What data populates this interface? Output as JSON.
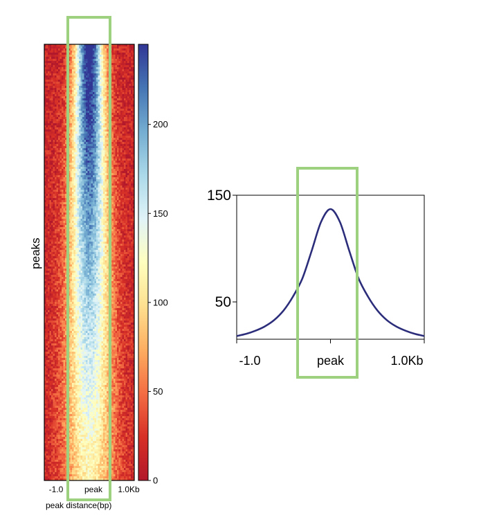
{
  "chart_data": [
    {
      "type": "heatmap",
      "ylabel": "peaks",
      "xlabel": "peak distance(bp)",
      "x_tick_labels": [
        "-1.0",
        "peak",
        "1.0Kb"
      ],
      "x_range_kb": [
        -1.0,
        1.0
      ],
      "rows_sorted": "descending signal at peak",
      "colorbar": {
        "range": [
          0,
          245
        ],
        "ticks": [
          0,
          50,
          100,
          150,
          200
        ],
        "tick_labels": [
          "0",
          "50",
          "100",
          "150",
          "200"
        ],
        "colormap": [
          "#b2182b",
          "#d73027",
          "#f46d43",
          "#fdae61",
          "#fee090",
          "#ffffbf",
          "#e0f3f8",
          "#abd9e9",
          "#74add1",
          "#4575b4",
          "#313695"
        ]
      },
      "highlight": {
        "x_range_kb": [
          -0.3,
          0.3
        ],
        "color": "#9dd17f"
      }
    },
    {
      "type": "line",
      "x_tick_labels": [
        "-1.0",
        "peak",
        "1.0Kb"
      ],
      "y_tick_labels": [
        "150",
        "50"
      ],
      "y_ticks": [
        150,
        50
      ],
      "ylim": [
        15,
        150
      ],
      "x": [
        -1.0,
        -0.9,
        -0.8,
        -0.7,
        -0.6,
        -0.5,
        -0.4,
        -0.3,
        -0.2,
        -0.1,
        0.0,
        0.1,
        0.2,
        0.3,
        0.4,
        0.5,
        0.6,
        0.7,
        0.8,
        0.9,
        1.0
      ],
      "series": [
        {
          "values": [
            18,
            20,
            23,
            27,
            33,
            42,
            55,
            72,
            98,
            125,
            137,
            125,
            98,
            72,
            55,
            42,
            33,
            27,
            23,
            20,
            18
          ],
          "color": "#2b2d7a"
        }
      ],
      "highlight": {
        "x_range_kb": [
          -0.35,
          0.3
        ],
        "color": "#9dd17f"
      }
    }
  ]
}
